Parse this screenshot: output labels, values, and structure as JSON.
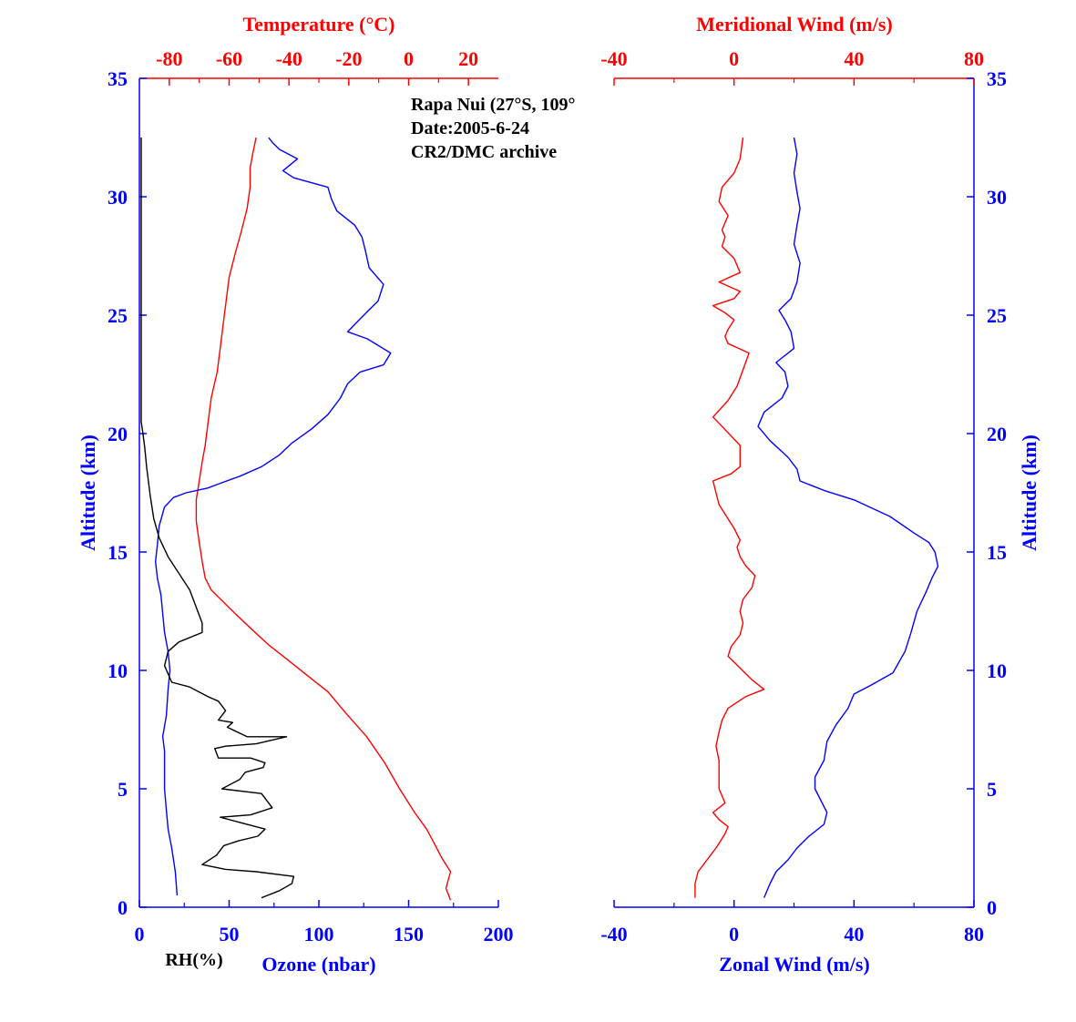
{
  "colors": {
    "blue": "#0000ff",
    "red": "#ff0000",
    "black": "#000000"
  },
  "annotations": [
    "Rapa Nui (27°S, 109°",
    "Date:2005-6-24",
    "CR2/DMC archive"
  ],
  "chart_data": [
    {
      "type": "line",
      "panel": "left",
      "title": "",
      "ylabel": "Altitude (km)",
      "ylim": [
        0,
        35
      ],
      "yticks": [
        0,
        5,
        10,
        15,
        20,
        25,
        30,
        35
      ],
      "x_bottom": {
        "label_ozone": "Ozone (nbar)",
        "label_rh": "RH(%)",
        "lim": [
          0,
          200
        ],
        "ticks": [
          0,
          50,
          100,
          150,
          200
        ]
      },
      "x_top": {
        "label": "Temperature (°C)",
        "lim": [
          -90,
          30
        ],
        "ticks": [
          -80,
          -60,
          -40,
          -20,
          0,
          20
        ]
      },
      "series": [
        {
          "name": "Temperature (°C)",
          "axis": "top",
          "color": "#ff0000",
          "x": [
            14,
            12.5,
            14,
            11,
            9,
            6,
            2,
            -3,
            -8,
            -14,
            -21,
            -27,
            -33,
            -40,
            -47,
            -53,
            -58,
            -62,
            -66,
            -68,
            -69,
            -70,
            -71,
            -71,
            -70,
            -69,
            -68,
            -67,
            -66,
            -64,
            -63,
            -62,
            -61,
            -60,
            -58,
            -56,
            -54,
            -53,
            -53,
            -52,
            -51
          ],
          "y": [
            0.3,
            0.8,
            1.5,
            2.1,
            2.6,
            3.3,
            4.0,
            5.0,
            6.1,
            7.2,
            8.2,
            9.1,
            9.7,
            10.4,
            11.1,
            11.8,
            12.4,
            12.9,
            13.4,
            13.9,
            14.6,
            15.4,
            16.3,
            17.2,
            18.0,
            18.8,
            19.5,
            20.5,
            21.5,
            22.6,
            23.6,
            24.6,
            25.6,
            26.6,
            27.6,
            28.5,
            29.5,
            30.4,
            31.2,
            31.9,
            32.5
          ]
        },
        {
          "name": "Ozone (nbar)",
          "axis": "bottom",
          "color": "#0000ff",
          "x": [
            21,
            20,
            18,
            16,
            15,
            14,
            14,
            14,
            13,
            15,
            16,
            17,
            16,
            14,
            13,
            12,
            10,
            9,
            10,
            11,
            14,
            19,
            26,
            32,
            38,
            45,
            56,
            68,
            78,
            85,
            96,
            105,
            112,
            116,
            123,
            136,
            140,
            127,
            116,
            125,
            133,
            136,
            128,
            126,
            124,
            120,
            110,
            107,
            105,
            86,
            80,
            88,
            78,
            74,
            72
          ],
          "y": [
            0.5,
            1.5,
            2.5,
            3.3,
            4.1,
            5.0,
            6.0,
            6.6,
            7.2,
            8.1,
            9.2,
            10.0,
            10.8,
            11.6,
            12.4,
            13.2,
            13.9,
            14.6,
            15.3,
            16.1,
            16.9,
            17.3,
            17.5,
            17.6,
            17.7,
            17.9,
            18.2,
            18.6,
            19.1,
            19.6,
            20.2,
            20.8,
            21.5,
            22.1,
            22.6,
            22.9,
            23.4,
            24.0,
            24.3,
            25.0,
            25.6,
            26.3,
            27.0,
            27.7,
            28.3,
            28.8,
            29.4,
            29.9,
            30.4,
            30.8,
            31.1,
            31.6,
            32.0,
            32.3,
            32.5
          ]
        },
        {
          "name": "RH(%)",
          "axis": "bottom",
          "color": "#000000",
          "x": [
            68,
            78,
            85,
            86,
            65,
            48,
            35,
            43,
            47,
            55,
            66,
            70,
            55,
            45,
            62,
            74,
            68,
            46,
            56,
            59,
            69,
            70,
            62,
            44,
            42,
            48,
            65,
            82,
            72,
            60,
            49,
            52,
            44,
            48,
            44,
            38,
            28,
            18,
            14,
            16,
            22,
            35,
            35,
            32,
            28,
            22,
            16,
            11,
            8,
            6,
            4,
            3,
            2,
            1,
            1,
            1,
            1,
            1,
            1,
            1,
            1
          ],
          "y": [
            0.4,
            0.7,
            1.0,
            1.3,
            1.5,
            1.6,
            1.8,
            2.2,
            2.6,
            2.8,
            3.0,
            3.3,
            3.6,
            3.8,
            3.9,
            4.2,
            4.8,
            5.0,
            5.4,
            5.7,
            5.9,
            6.1,
            6.3,
            6.3,
            6.7,
            6.8,
            6.9,
            7.2,
            7.2,
            7.2,
            7.6,
            7.8,
            7.9,
            8.3,
            8.7,
            8.9,
            9.3,
            9.5,
            10.2,
            10.8,
            11.2,
            11.6,
            12.0,
            12.6,
            13.4,
            14.1,
            14.8,
            15.6,
            16.4,
            17.4,
            18.6,
            19.4,
            20.0,
            20.5,
            22.0,
            24.0,
            26.0,
            28.0,
            30.0,
            31.5,
            32.5
          ]
        }
      ]
    },
    {
      "type": "line",
      "panel": "right",
      "title": "",
      "ylabel": "Altitude (km)",
      "ylim": [
        0,
        35
      ],
      "yticks": [
        0,
        5,
        10,
        15,
        20,
        25,
        30,
        35
      ],
      "x_bottom": {
        "label": "Zonal Wind (m/s)",
        "lim": [
          -40,
          80
        ],
        "ticks": [
          -40,
          0,
          40,
          80
        ]
      },
      "x_top": {
        "label": "Meridional Wind (m/s)",
        "lim": [
          -40,
          80
        ],
        "ticks": [
          -40,
          0,
          40,
          80
        ]
      },
      "series": [
        {
          "name": "Meridional Wind (m/s)",
          "axis": "top",
          "color": "#ff0000",
          "x": [
            -13,
            -13,
            -12,
            -9,
            -6,
            -3,
            -2,
            -5,
            -7,
            -3,
            -5,
            -5,
            -5,
            -6,
            -5,
            -4,
            -2,
            4,
            10,
            6,
            2,
            -2,
            -1,
            2,
            3,
            2,
            3,
            6,
            7,
            4,
            2,
            1,
            2,
            0,
            -5,
            -7,
            -1,
            2,
            2,
            -4,
            -7,
            -2,
            1,
            5,
            -2,
            -3,
            -2,
            0,
            -3,
            -7,
            0,
            2,
            -5,
            2,
            0,
            -4,
            -3,
            -4,
            -2,
            -5,
            -4,
            0,
            2,
            3
          ],
          "y": [
            0.4,
            1.0,
            1.5,
            2.0,
            2.5,
            3.1,
            3.4,
            3.7,
            4.0,
            4.4,
            5.0,
            5.6,
            6.2,
            6.8,
            7.4,
            7.9,
            8.4,
            8.9,
            9.2,
            9.6,
            10.1,
            10.6,
            11.0,
            11.5,
            12.0,
            12.5,
            13.0,
            13.5,
            14.0,
            14.4,
            14.8,
            15.2,
            15.5,
            16.0,
            17.0,
            18.0,
            18.3,
            18.6,
            19.5,
            20.3,
            20.7,
            21.4,
            22.0,
            23.4,
            23.8,
            24.1,
            24.4,
            24.8,
            25.1,
            25.4,
            25.7,
            26.0,
            26.4,
            26.8,
            27.4,
            27.9,
            28.3,
            28.6,
            29.2,
            29.8,
            30.4,
            31.0,
            31.6,
            32.5
          ]
        },
        {
          "name": "Zonal Wind (m/s)",
          "axis": "bottom",
          "color": "#0000ff",
          "x": [
            10,
            12,
            14,
            18,
            21,
            25,
            30,
            31,
            29,
            27,
            27,
            30,
            31,
            34,
            38,
            40,
            46,
            53,
            57,
            59,
            61,
            64,
            66,
            68,
            67,
            65,
            60,
            52,
            40,
            30,
            22,
            21,
            18,
            12,
            8,
            10,
            16,
            18,
            17,
            14,
            20,
            19,
            17,
            15,
            19,
            21,
            22,
            20,
            21,
            22,
            21,
            20,
            21,
            20
          ],
          "y": [
            0.4,
            1.0,
            1.5,
            2.0,
            2.5,
            3.0,
            3.5,
            4.0,
            4.5,
            5.0,
            5.5,
            6.2,
            7.0,
            7.7,
            8.4,
            9.0,
            9.4,
            9.9,
            10.8,
            11.6,
            12.5,
            13.3,
            13.9,
            14.4,
            15.0,
            15.4,
            15.8,
            16.5,
            17.2,
            17.6,
            18.0,
            18.5,
            19.0,
            19.7,
            20.3,
            20.9,
            21.5,
            22.0,
            22.6,
            23.0,
            23.6,
            24.3,
            24.8,
            25.2,
            25.7,
            26.4,
            27.2,
            28.0,
            28.8,
            29.5,
            30.2,
            31.0,
            31.8,
            32.5
          ]
        }
      ]
    }
  ]
}
